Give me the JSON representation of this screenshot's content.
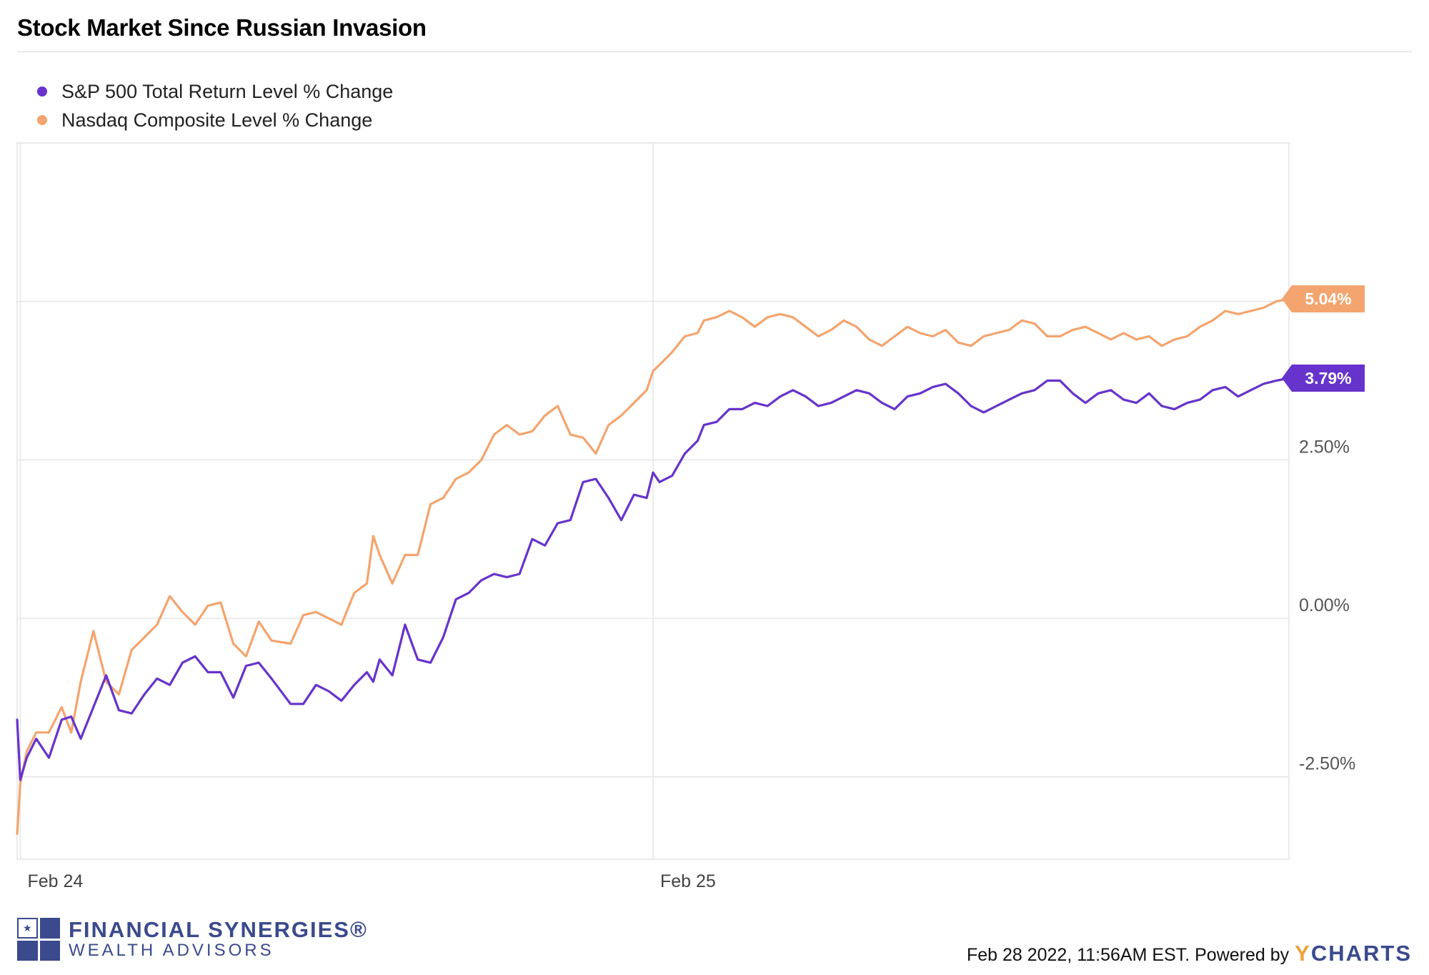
{
  "chart_data": {
    "type": "line",
    "title": "Stock Market Since Russian Invasion",
    "xlabel": "",
    "ylabel": "",
    "ylim": [
      -3.8,
      7.5
    ],
    "yticks": [
      -2.5,
      0,
      2.5
    ],
    "ytick_labels": [
      "-2.50%",
      "0.00%",
      "2.50%"
    ],
    "x_range": [
      0,
      2.0
    ],
    "xticks": [
      0.005,
      1.0
    ],
    "xtick_labels": [
      "Feb 24",
      "Feb 25"
    ],
    "series": [
      {
        "name": "S&P 500 Total Return Level % Change",
        "color": "#6633cc",
        "end_label": "3.79%",
        "x": [
          0.0,
          0.005,
          0.015,
          0.03,
          0.05,
          0.07,
          0.085,
          0.1,
          0.12,
          0.14,
          0.16,
          0.18,
          0.2,
          0.22,
          0.24,
          0.26,
          0.28,
          0.3,
          0.32,
          0.34,
          0.36,
          0.38,
          0.4,
          0.43,
          0.45,
          0.47,
          0.49,
          0.51,
          0.53,
          0.55,
          0.56,
          0.57,
          0.59,
          0.61,
          0.63,
          0.65,
          0.67,
          0.69,
          0.71,
          0.73,
          0.75,
          0.77,
          0.79,
          0.81,
          0.83,
          0.85,
          0.87,
          0.89,
          0.91,
          0.93,
          0.95,
          0.97,
          0.99,
          1.0,
          1.01,
          1.03,
          1.05,
          1.07,
          1.08,
          1.1,
          1.12,
          1.14,
          1.16,
          1.18,
          1.2,
          1.22,
          1.24,
          1.26,
          1.28,
          1.3,
          1.32,
          1.34,
          1.36,
          1.38,
          1.4,
          1.42,
          1.44,
          1.46,
          1.48,
          1.5,
          1.52,
          1.54,
          1.56,
          1.58,
          1.6,
          1.62,
          1.64,
          1.66,
          1.68,
          1.7,
          1.72,
          1.74,
          1.76,
          1.78,
          1.8,
          1.82,
          1.84,
          1.86,
          1.88,
          1.9,
          1.92,
          1.94,
          1.96,
          1.98,
          2.0
        ],
        "values": [
          -1.6,
          -2.55,
          -2.2,
          -1.9,
          -2.2,
          -1.6,
          -1.55,
          -1.9,
          -1.4,
          -0.9,
          -1.45,
          -1.5,
          -1.2,
          -0.95,
          -1.05,
          -0.7,
          -0.6,
          -0.85,
          -0.85,
          -1.25,
          -0.75,
          -0.7,
          -0.95,
          -1.35,
          -1.35,
          -1.05,
          -1.15,
          -1.3,
          -1.05,
          -0.85,
          -1.0,
          -0.65,
          -0.9,
          -0.1,
          -0.65,
          -0.7,
          -0.3,
          0.3,
          0.4,
          0.6,
          0.7,
          0.65,
          0.7,
          1.25,
          1.15,
          1.5,
          1.55,
          2.15,
          2.2,
          1.9,
          1.55,
          1.95,
          1.9,
          2.3,
          2.15,
          2.25,
          2.6,
          2.8,
          3.05,
          3.1,
          3.3,
          3.3,
          3.4,
          3.35,
          3.5,
          3.6,
          3.5,
          3.35,
          3.4,
          3.5,
          3.6,
          3.55,
          3.4,
          3.3,
          3.5,
          3.55,
          3.65,
          3.7,
          3.55,
          3.35,
          3.25,
          3.35,
          3.45,
          3.55,
          3.6,
          3.75,
          3.75,
          3.55,
          3.4,
          3.55,
          3.6,
          3.45,
          3.4,
          3.55,
          3.35,
          3.3,
          3.4,
          3.45,
          3.6,
          3.65,
          3.5,
          3.6,
          3.7,
          3.75,
          3.79
        ]
      },
      {
        "name": "Nasdaq Composite Level % Change",
        "color": "#f4a46e",
        "end_label": "5.04%",
        "x": [
          0.0,
          0.005,
          0.015,
          0.03,
          0.05,
          0.07,
          0.085,
          0.1,
          0.12,
          0.14,
          0.16,
          0.18,
          0.2,
          0.22,
          0.24,
          0.26,
          0.28,
          0.3,
          0.32,
          0.34,
          0.36,
          0.38,
          0.4,
          0.43,
          0.45,
          0.47,
          0.49,
          0.51,
          0.53,
          0.55,
          0.56,
          0.57,
          0.59,
          0.61,
          0.63,
          0.65,
          0.67,
          0.69,
          0.71,
          0.73,
          0.75,
          0.77,
          0.79,
          0.81,
          0.83,
          0.85,
          0.87,
          0.89,
          0.91,
          0.93,
          0.95,
          0.97,
          0.99,
          1.0,
          1.01,
          1.03,
          1.05,
          1.07,
          1.08,
          1.1,
          1.12,
          1.14,
          1.16,
          1.18,
          1.2,
          1.22,
          1.24,
          1.26,
          1.28,
          1.3,
          1.32,
          1.34,
          1.36,
          1.38,
          1.4,
          1.42,
          1.44,
          1.46,
          1.48,
          1.5,
          1.52,
          1.54,
          1.56,
          1.58,
          1.6,
          1.62,
          1.64,
          1.66,
          1.68,
          1.7,
          1.72,
          1.74,
          1.76,
          1.78,
          1.8,
          1.82,
          1.84,
          1.86,
          1.88,
          1.9,
          1.92,
          1.94,
          1.96,
          1.98,
          2.0
        ],
        "values": [
          -3.4,
          -2.6,
          -2.1,
          -1.8,
          -1.8,
          -1.4,
          -1.8,
          -1.0,
          -0.2,
          -1.0,
          -1.2,
          -0.5,
          -0.3,
          -0.1,
          0.35,
          0.1,
          -0.1,
          0.2,
          0.25,
          -0.4,
          -0.6,
          -0.05,
          -0.35,
          -0.4,
          0.05,
          0.1,
          0.0,
          -0.1,
          0.4,
          0.55,
          1.3,
          1.0,
          0.55,
          1.0,
          1.0,
          1.8,
          1.9,
          2.2,
          2.3,
          2.5,
          2.9,
          3.05,
          2.9,
          2.95,
          3.2,
          3.35,
          2.9,
          2.85,
          2.6,
          3.05,
          3.2,
          3.4,
          3.6,
          3.9,
          4.0,
          4.2,
          4.45,
          4.5,
          4.7,
          4.75,
          4.85,
          4.75,
          4.6,
          4.75,
          4.8,
          4.75,
          4.6,
          4.45,
          4.55,
          4.7,
          4.6,
          4.4,
          4.3,
          4.45,
          4.6,
          4.5,
          4.45,
          4.55,
          4.35,
          4.3,
          4.45,
          4.5,
          4.55,
          4.7,
          4.65,
          4.45,
          4.45,
          4.55,
          4.6,
          4.5,
          4.4,
          4.5,
          4.4,
          4.45,
          4.3,
          4.4,
          4.45,
          4.6,
          4.7,
          4.85,
          4.8,
          4.85,
          4.9,
          5.0,
          5.04
        ]
      }
    ]
  },
  "footer": {
    "brand_line1": "FINANCIAL SYNERGIES®",
    "brand_line2": "WEALTH ADVISORS",
    "credit": "Feb 28 2022, 11:56AM EST. Powered by",
    "ycharts_y": "Y",
    "ycharts_rest": "CHARTS"
  }
}
